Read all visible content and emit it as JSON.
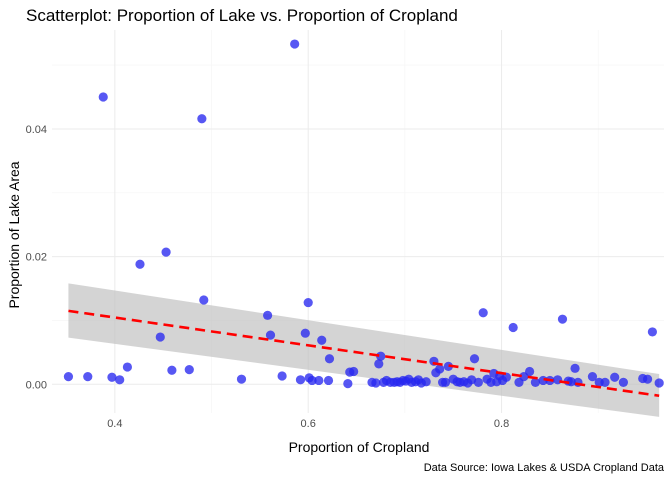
{
  "chart_data": {
    "type": "scatter",
    "title": "Scatterplot: Proportion of Lake vs. Proportion of Cropland",
    "xlabel": "Proportion of Cropland",
    "ylabel": "Proportion of Lake Area",
    "caption": "Data Source: Iowa Lakes & USDA Cropland Data",
    "xlim": [
      0.335,
      0.968
    ],
    "ylim": [
      -0.0045,
      0.0555
    ],
    "x_ticks": [
      0.4,
      0.6,
      0.8
    ],
    "x_tick_labels": [
      "0.4",
      "0.6",
      "0.8"
    ],
    "y_ticks": [
      0.0,
      0.02,
      0.04
    ],
    "y_tick_labels": [
      "0.00",
      "0.02",
      "0.04"
    ],
    "grid": true,
    "point_color": "#2828f0",
    "fit_color": "#ff0000",
    "band_color": "#bdbdbd",
    "points": [
      [
        0.352,
        0.0012
      ],
      [
        0.372,
        0.0012
      ],
      [
        0.388,
        0.045
      ],
      [
        0.397,
        0.0011
      ],
      [
        0.405,
        0.0007
      ],
      [
        0.413,
        0.0027
      ],
      [
        0.426,
        0.0188
      ],
      [
        0.447,
        0.0074
      ],
      [
        0.453,
        0.0207
      ],
      [
        0.459,
        0.0022
      ],
      [
        0.477,
        0.0023
      ],
      [
        0.49,
        0.0416
      ],
      [
        0.492,
        0.0132
      ],
      [
        0.531,
        0.0008
      ],
      [
        0.558,
        0.0108
      ],
      [
        0.561,
        0.0077
      ],
      [
        0.573,
        0.0013
      ],
      [
        0.586,
        0.0533
      ],
      [
        0.592,
        0.0007
      ],
      [
        0.597,
        0.008
      ],
      [
        0.6,
        0.0128
      ],
      [
        0.601,
        0.001
      ],
      [
        0.604,
        0.0006
      ],
      [
        0.611,
        0.0006
      ],
      [
        0.614,
        0.0069
      ],
      [
        0.621,
        0.0006
      ],
      [
        0.622,
        0.004
      ],
      [
        0.641,
        0.0001
      ],
      [
        0.643,
        0.0019
      ],
      [
        0.647,
        0.002
      ],
      [
        0.666,
        0.0003
      ],
      [
        0.67,
        0.0002
      ],
      [
        0.673,
        0.0032
      ],
      [
        0.675,
        0.0044
      ],
      [
        0.678,
        0.0003
      ],
      [
        0.681,
        0.0006
      ],
      [
        0.685,
        0.0003
      ],
      [
        0.689,
        0.0003
      ],
      [
        0.692,
        0.0004
      ],
      [
        0.695,
        0.0003
      ],
      [
        0.698,
        0.0006
      ],
      [
        0.701,
        0.0005
      ],
      [
        0.704,
        0.0008
      ],
      [
        0.707,
        0.0003
      ],
      [
        0.711,
        0.0004
      ],
      [
        0.714,
        0.0007
      ],
      [
        0.717,
        0.0002
      ],
      [
        0.722,
        0.0004
      ],
      [
        0.73,
        0.0036
      ],
      [
        0.732,
        0.0018
      ],
      [
        0.736,
        0.0024
      ],
      [
        0.739,
        0.0003
      ],
      [
        0.742,
        0.0003
      ],
      [
        0.745,
        0.0028
      ],
      [
        0.75,
        0.0008
      ],
      [
        0.754,
        0.0004
      ],
      [
        0.757,
        0.0003
      ],
      [
        0.761,
        0.0004
      ],
      [
        0.765,
        0.0002
      ],
      [
        0.769,
        0.0007
      ],
      [
        0.772,
        0.004
      ],
      [
        0.776,
        0.0003
      ],
      [
        0.781,
        0.0112
      ],
      [
        0.785,
        0.0008
      ],
      [
        0.789,
        0.0003
      ],
      [
        0.792,
        0.0017
      ],
      [
        0.795,
        0.0004
      ],
      [
        0.798,
        0.0013
      ],
      [
        0.801,
        0.0006
      ],
      [
        0.805,
        0.0011
      ],
      [
        0.812,
        0.0089
      ],
      [
        0.818,
        0.0003
      ],
      [
        0.823,
        0.0012
      ],
      [
        0.829,
        0.002
      ],
      [
        0.835,
        0.0003
      ],
      [
        0.843,
        0.0006
      ],
      [
        0.85,
        0.0006
      ],
      [
        0.858,
        0.0007
      ],
      [
        0.863,
        0.0102
      ],
      [
        0.869,
        0.0005
      ],
      [
        0.872,
        0.0004
      ],
      [
        0.876,
        0.0025
      ],
      [
        0.879,
        0.0003
      ],
      [
        0.894,
        0.0012
      ],
      [
        0.901,
        0.0003
      ],
      [
        0.907,
        0.0003
      ],
      [
        0.917,
        0.0011
      ],
      [
        0.926,
        0.0003
      ],
      [
        0.946,
        0.0009
      ],
      [
        0.951,
        0.0008
      ],
      [
        0.956,
        0.0082
      ],
      [
        0.963,
        0.0002
      ]
    ],
    "fit_line": {
      "x": [
        0.352,
        0.963
      ],
      "y": [
        0.0115,
        -0.0018
      ],
      "ci_lower": [
        0.0073,
        -0.0051
      ],
      "ci_upper": [
        0.0158,
        0.0016
      ]
    }
  }
}
